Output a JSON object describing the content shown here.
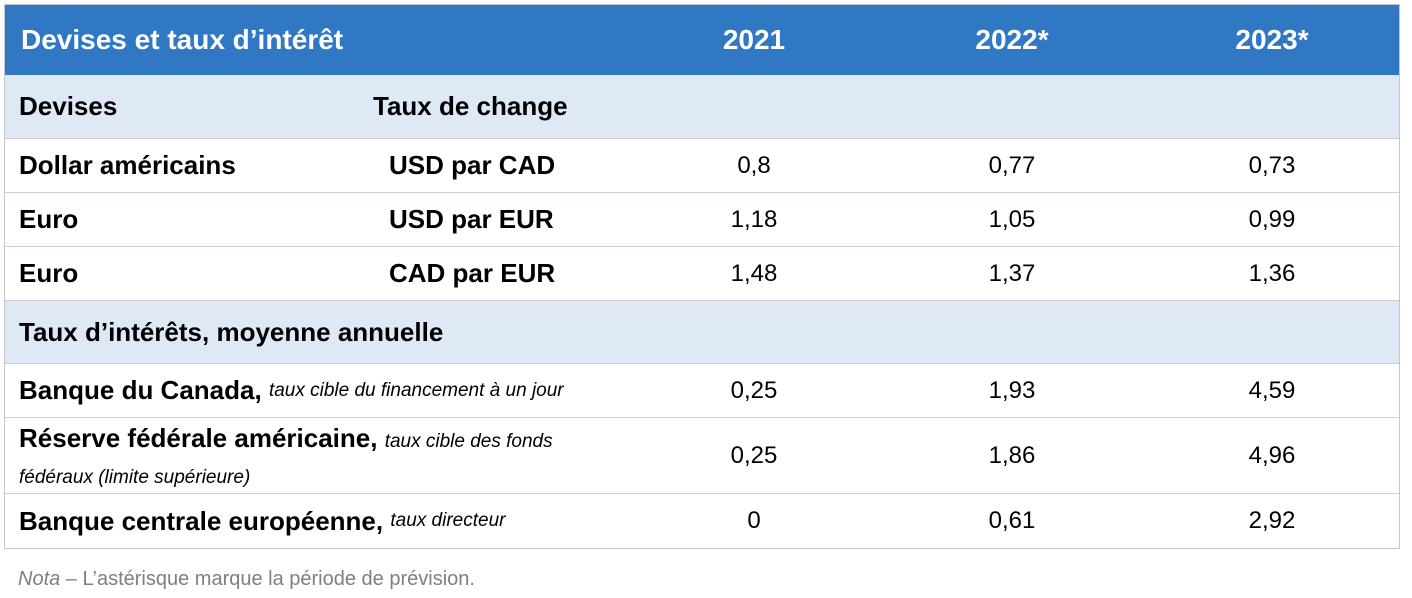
{
  "header": {
    "title": "Devises et taux d’intérêt",
    "years": [
      "2021",
      "2022*",
      "2023*"
    ]
  },
  "section_currencies": {
    "label": "Devises",
    "unit_header": "Taux de change"
  },
  "currency_rows": [
    {
      "label": "Dollar américains",
      "unit": "USD par CAD",
      "values": [
        "0,8",
        "0,77",
        "0,73"
      ]
    },
    {
      "label": "Euro",
      "unit": "USD par EUR",
      "values": [
        "1,18",
        "1,05",
        "0,99"
      ]
    },
    {
      "label": "Euro",
      "unit": "CAD par EUR",
      "values": [
        "1,48",
        "1,37",
        "1,36"
      ]
    }
  ],
  "section_rates": {
    "label": "Taux d’intérêts, moyenne annuelle"
  },
  "rate_rows": [
    {
      "label": "Banque du Canada,",
      "qualifier": "taux cible du financement à un jour",
      "values": [
        "0,25",
        "1,93",
        "4,59"
      ]
    },
    {
      "label": "Réserve fédérale américaine,",
      "qualifier": "taux cible des fonds fédéraux (limite supérieure)",
      "values": [
        "0,25",
        "1,86",
        "4,96"
      ]
    },
    {
      "label": "Banque centrale européenne,",
      "qualifier": "taux directeur",
      "values": [
        "0",
        "0,61",
        "2,92"
      ]
    }
  ],
  "note": {
    "prefix": "Nota",
    "text": " – L’astérisque marque la période de prévision."
  },
  "colors": {
    "header_bg": "#3077c4",
    "section_bg": "#dfe9f6",
    "border": "#d6c9d2"
  }
}
